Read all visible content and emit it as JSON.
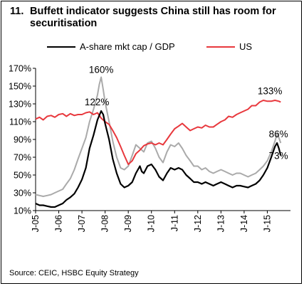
{
  "figure": {
    "number": "11.",
    "title_line1": "Buffett indicator suggests China still has room for",
    "title_line2": "securitisation",
    "source": "Source: CEIC, HSBC Equity Strategy"
  },
  "colors": {
    "a_share": "#000000",
    "us": "#e8383d",
    "grey_series": "#aaaaaa"
  },
  "chart_data": {
    "type": "line",
    "title": "Buffett indicator suggests China still has room for securitisation",
    "xlabel": "",
    "ylabel": "",
    "ylim": [
      10,
      170
    ],
    "yticks": [
      "10%",
      "30%",
      "50%",
      "70%",
      "90%",
      "110%",
      "130%",
      "150%",
      "170%"
    ],
    "ytick_values": [
      10,
      30,
      50,
      70,
      90,
      110,
      130,
      150,
      170
    ],
    "xlim": [
      2005.0,
      2016.0
    ],
    "xticks": [
      "J-05",
      "J-06",
      "J-07",
      "J-08",
      "J-09",
      "J-10",
      "J-11",
      "J-12",
      "J-13",
      "J-14",
      "J-15"
    ],
    "xtick_values": [
      2005,
      2006,
      2007,
      2008,
      2009,
      2010,
      2011,
      2012,
      2013,
      2014,
      2015
    ],
    "legend_position": "top",
    "grid": false,
    "annotations": [
      {
        "text": "160%",
        "x": 2007.83,
        "y": 160
      },
      {
        "text": "122%",
        "x": 2007.83,
        "y": 122
      },
      {
        "text": "133%",
        "x": 2015.42,
        "y": 133
      },
      {
        "text": "86%",
        "x": 2015.42,
        "y": 86
      },
      {
        "text": "73%",
        "x": 2015.42,
        "y": 73
      }
    ],
    "series": [
      {
        "name": "A-share mkt cap / GDP",
        "color": "#000000",
        "x": [
          2005.0,
          2005.17,
          2005.33,
          2005.5,
          2005.67,
          2005.83,
          2006.0,
          2006.17,
          2006.33,
          2006.5,
          2006.67,
          2006.83,
          2007.0,
          2007.17,
          2007.33,
          2007.5,
          2007.67,
          2007.83,
          2007.92,
          2008.0,
          2008.17,
          2008.33,
          2008.5,
          2008.67,
          2008.83,
          2009.0,
          2009.17,
          2009.33,
          2009.5,
          2009.58,
          2009.67,
          2009.83,
          2010.0,
          2010.17,
          2010.33,
          2010.5,
          2010.67,
          2010.83,
          2011.0,
          2011.17,
          2011.33,
          2011.5,
          2011.67,
          2011.83,
          2012.0,
          2012.17,
          2012.33,
          2012.5,
          2012.67,
          2012.83,
          2013.0,
          2013.17,
          2013.33,
          2013.5,
          2013.67,
          2013.83,
          2014.0,
          2014.17,
          2014.33,
          2014.5,
          2014.67,
          2014.83,
          2015.0,
          2015.17,
          2015.33,
          2015.42,
          2015.5,
          2015.58
        ],
        "values": [
          18,
          16,
          16,
          15,
          14,
          14,
          16,
          18,
          22,
          25,
          29,
          36,
          45,
          58,
          80,
          95,
          112,
          122,
          118,
          108,
          90,
          68,
          52,
          40,
          36,
          38,
          42,
          52,
          60,
          54,
          52,
          60,
          62,
          56,
          48,
          44,
          52,
          58,
          56,
          58,
          56,
          50,
          46,
          42,
          42,
          40,
          42,
          40,
          38,
          40,
          42,
          40,
          38,
          36,
          38,
          38,
          37,
          36,
          38,
          40,
          44,
          50,
          58,
          70,
          82,
          86,
          80,
          72
        ]
      },
      {
        "name": "US",
        "color": "#e8383d",
        "x": [
          2005.0,
          2005.17,
          2005.33,
          2005.5,
          2005.67,
          2005.83,
          2006.0,
          2006.17,
          2006.33,
          2006.5,
          2006.67,
          2006.83,
          2007.0,
          2007.17,
          2007.33,
          2007.5,
          2007.67,
          2007.83,
          2008.0,
          2008.17,
          2008.33,
          2008.5,
          2008.67,
          2008.83,
          2009.0,
          2009.17,
          2009.33,
          2009.5,
          2009.67,
          2009.83,
          2010.0,
          2010.17,
          2010.33,
          2010.5,
          2010.67,
          2010.83,
          2011.0,
          2011.17,
          2011.33,
          2011.5,
          2011.67,
          2011.83,
          2012.0,
          2012.17,
          2012.33,
          2012.5,
          2012.67,
          2012.83,
          2013.0,
          2013.17,
          2013.33,
          2013.5,
          2013.67,
          2013.83,
          2014.0,
          2014.17,
          2014.33,
          2014.5,
          2014.67,
          2014.83,
          2015.0,
          2015.17,
          2015.33,
          2015.5,
          2015.58
        ],
        "values": [
          113,
          115,
          112,
          116,
          117,
          115,
          118,
          119,
          116,
          119,
          117,
          118,
          118,
          120,
          121,
          118,
          120,
          114,
          110,
          107,
          100,
          92,
          82,
          72,
          62,
          66,
          74,
          78,
          83,
          85,
          86,
          84,
          86,
          84,
          90,
          96,
          102,
          105,
          108,
          104,
          100,
          102,
          104,
          103,
          106,
          104,
          104,
          107,
          110,
          112,
          116,
          115,
          118,
          120,
          122,
          124,
          128,
          128,
          132,
          134,
          133,
          133,
          134,
          133,
          132
        ]
      },
      {
        "name": "",
        "color": "#aaaaaa",
        "x": [
          2005.0,
          2005.17,
          2005.33,
          2005.5,
          2005.67,
          2005.83,
          2006.0,
          2006.17,
          2006.33,
          2006.5,
          2006.67,
          2006.83,
          2007.0,
          2007.17,
          2007.33,
          2007.5,
          2007.67,
          2007.75,
          2007.83,
          2007.92,
          2008.0,
          2008.17,
          2008.33,
          2008.5,
          2008.67,
          2008.83,
          2009.0,
          2009.17,
          2009.33,
          2009.5,
          2009.67,
          2009.83,
          2010.0,
          2010.17,
          2010.33,
          2010.5,
          2010.67,
          2010.83,
          2011.0,
          2011.17,
          2011.33,
          2011.5,
          2011.67,
          2011.83,
          2012.0,
          2012.17,
          2012.33,
          2012.5,
          2012.67,
          2012.83,
          2013.0,
          2013.17,
          2013.33,
          2013.5,
          2013.67,
          2013.83,
          2014.0,
          2014.17,
          2014.33,
          2014.5,
          2014.67,
          2014.83,
          2015.0,
          2015.17,
          2015.33,
          2015.42,
          2015.5,
          2015.58
        ],
        "values": [
          28,
          27,
          26,
          27,
          28,
          30,
          32,
          34,
          40,
          46,
          56,
          68,
          80,
          92,
          110,
          124,
          140,
          152,
          160,
          146,
          132,
          110,
          88,
          70,
          58,
          56,
          60,
          72,
          84,
          80,
          76,
          86,
          88,
          80,
          70,
          64,
          76,
          84,
          82,
          86,
          80,
          72,
          66,
          60,
          60,
          56,
          58,
          54,
          52,
          54,
          56,
          54,
          52,
          50,
          52,
          52,
          50,
          48,
          50,
          52,
          56,
          60,
          66,
          76,
          88,
          96,
          92,
          86
        ]
      }
    ]
  }
}
